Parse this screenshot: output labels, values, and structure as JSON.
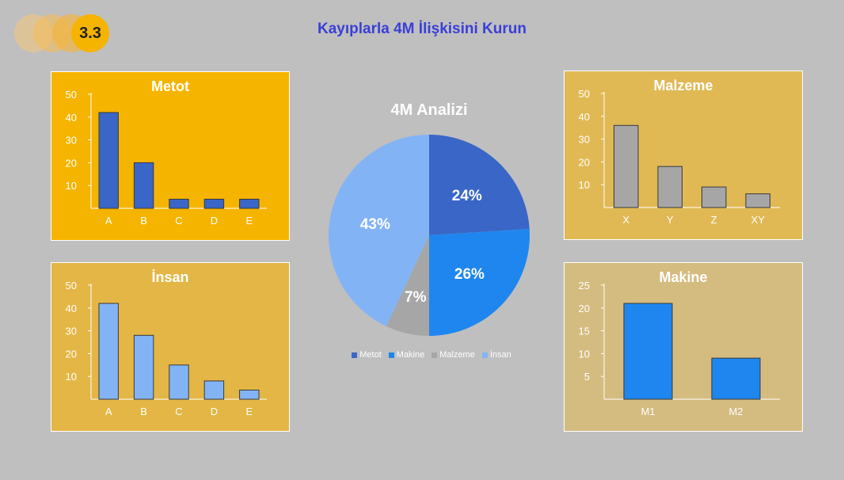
{
  "header": {
    "section_number": "3.3",
    "title": "Kayıplarla 4M İlişkisini Kurun"
  },
  "colors": {
    "background": "#bfbfbf",
    "title": "#3a3fd6",
    "metot_panel": "#f5b400",
    "insan_panel": "#e3b645",
    "malzeme_panel": "#e0b955",
    "makine_panel": "#d4bb7f"
  },
  "chart_data": [
    {
      "id": "metot",
      "type": "bar",
      "title": "Metot",
      "categories": [
        "A",
        "B",
        "C",
        "D",
        "E"
      ],
      "values": [
        42,
        20,
        4,
        4,
        4
      ],
      "yticks": [
        10,
        20,
        30,
        40,
        50
      ],
      "ylim": [
        0,
        50
      ],
      "bar_color": "#3a66c8",
      "grid": false
    },
    {
      "id": "insan",
      "type": "bar",
      "title": "İnsan",
      "categories": [
        "A",
        "B",
        "C",
        "D",
        "E"
      ],
      "values": [
        42,
        28,
        15,
        8,
        4
      ],
      "yticks": [
        10,
        20,
        30,
        40,
        50
      ],
      "ylim": [
        0,
        50
      ],
      "bar_color": "#82b4f5",
      "grid": false
    },
    {
      "id": "malzeme",
      "type": "bar",
      "title": "Malzeme",
      "categories": [
        "X",
        "Y",
        "Z",
        "XY"
      ],
      "values": [
        36,
        18,
        9,
        6
      ],
      "yticks": [
        10,
        20,
        30,
        40,
        50
      ],
      "ylim": [
        0,
        50
      ],
      "bar_color": "#a6a6a6",
      "grid": false
    },
    {
      "id": "makine",
      "type": "bar",
      "title": "Makine",
      "categories": [
        "M1",
        "M2"
      ],
      "values": [
        21,
        9
      ],
      "yticks": [
        5,
        10,
        15,
        20,
        25
      ],
      "ylim": [
        0,
        25
      ],
      "bar_color": "#1e86ee",
      "grid": false
    },
    {
      "id": "4m",
      "type": "pie",
      "title": "4M Analizi",
      "categories": [
        "Metot",
        "Makine",
        "Malzeme",
        "İnsan"
      ],
      "values": [
        24,
        26,
        7,
        43
      ],
      "labels": [
        "24%",
        "26%",
        "7%",
        "43%"
      ],
      "colors": [
        "#3a66c8",
        "#1e86ee",
        "#a6a6a6",
        "#82b4f5"
      ],
      "legend": "bottom"
    }
  ]
}
